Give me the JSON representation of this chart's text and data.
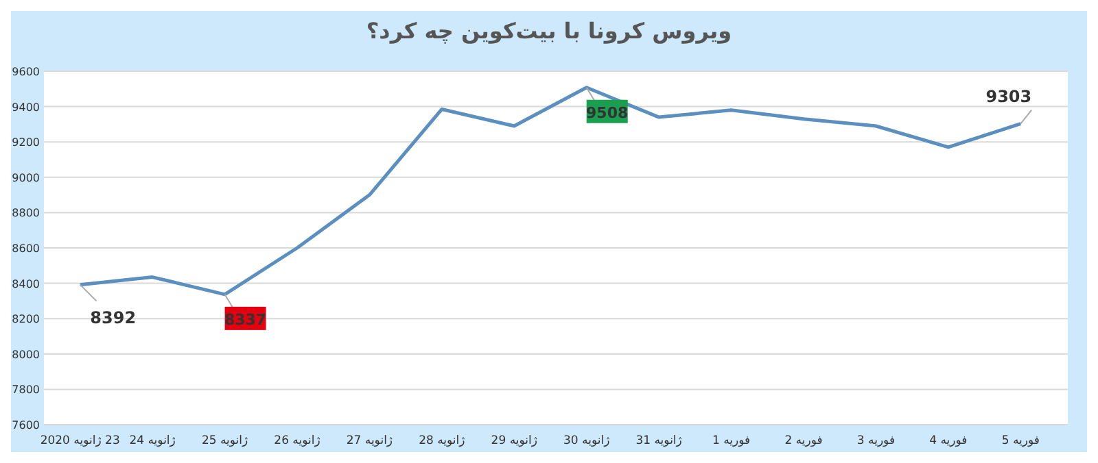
{
  "chart_data": {
    "type": "line",
    "title": "ویروس کرونا با بیت‌کوین چه کرد؟",
    "categories": [
      "23 ژانویه 2020",
      "ژانویه 24",
      "ژانویه 25",
      "ژانویه 26",
      "ژانویه 27",
      "ژانویه 28",
      "ژانویه 29",
      "ژانویه 30",
      "ژانویه 31",
      "فوریه 1",
      "فوریه 2",
      "فوریه 3",
      "فوریه 4",
      "فوریه 5"
    ],
    "series": [
      {
        "color": "#5b8fc0",
        "values": [
          8392,
          8435,
          8337,
          8600,
          8900,
          9385,
          9290,
          9508,
          9340,
          9380,
          9330,
          9290,
          9170,
          9303
        ],
        "value_labels": [
          "8392",
          null,
          "8337",
          null,
          null,
          null,
          null,
          "9508",
          null,
          null,
          null,
          null,
          null,
          "9303"
        ]
      }
    ],
    "ylim": [
      7600,
      9600
    ],
    "yticks": [
      7600,
      7800,
      8000,
      8200,
      8400,
      8600,
      8800,
      9000,
      9200,
      9400,
      9600
    ],
    "grid": "y",
    "marker": "none",
    "line_style": "solid"
  }
}
